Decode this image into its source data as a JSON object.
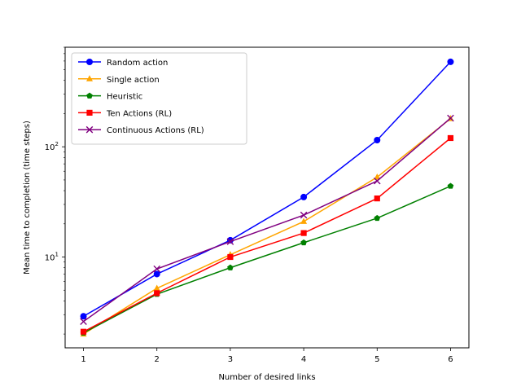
{
  "chart_data": {
    "type": "line",
    "title": "",
    "xlabel": "Number of desired links",
    "ylabel": "Mean time to completion (time steps)",
    "x": [
      1,
      2,
      3,
      4,
      5,
      6
    ],
    "xticks": [
      "1",
      "2",
      "3",
      "4",
      "5",
      "6"
    ],
    "xlim": [
      0.75,
      6.25
    ],
    "ylim": [
      1.5,
      800
    ],
    "yscale": "log",
    "yticks": [
      {
        "value": 10,
        "label": "10",
        "sup": "1"
      },
      {
        "value": 100,
        "label": "10",
        "sup": "2"
      }
    ],
    "grid": false,
    "legend_position": "top-left",
    "series": [
      {
        "name": "Random action",
        "color": "#0000ff",
        "marker": "circle",
        "values": [
          2.9,
          7.0,
          14.2,
          35.0,
          115.0,
          590.0
        ]
      },
      {
        "name": "Single action",
        "color": "#ffa500",
        "marker": "triangle",
        "values": [
          2.0,
          5.2,
          10.5,
          21.0,
          53.0,
          180.0
        ]
      },
      {
        "name": "Heuristic",
        "color": "#008000",
        "marker": "pentagon",
        "values": [
          2.05,
          4.6,
          8.0,
          13.5,
          22.5,
          44.0
        ]
      },
      {
        "name": "Ten Actions (RL)",
        "color": "#ff0000",
        "marker": "square",
        "values": [
          2.1,
          4.7,
          10.0,
          16.5,
          34.0,
          120.0
        ]
      },
      {
        "name": "Continuous Actions (RL)",
        "color": "#800080",
        "marker": "x",
        "values": [
          2.6,
          7.8,
          13.8,
          24.0,
          49.0,
          182.0
        ]
      }
    ]
  }
}
